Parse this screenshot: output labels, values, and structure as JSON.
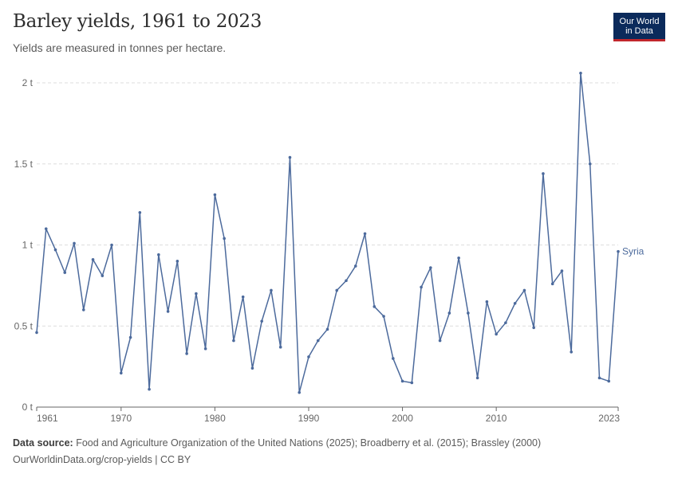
{
  "header": {
    "title": "Barley yields, 1961 to 2023",
    "subtitle": "Yields are measured in tonnes per hectare.",
    "logo_line1": "Our World",
    "logo_line2": "in Data"
  },
  "footer": {
    "source_label": "Data source:",
    "source_text": "Food and Agriculture Organization of the United Nations (2025); Broadberry et al. (2015); Brassley (2000)",
    "url_text": "OurWorldinData.org/crop-yields | CC BY"
  },
  "colors": {
    "series": "#4c6a9c",
    "grid": "#dddddd",
    "axis": "#666666",
    "tick_text": "#666666",
    "logo_bg": "#0b2a5b",
    "logo_accent": "#c1272d"
  },
  "chart_data": {
    "type": "line",
    "title": "Barley yields, 1961 to 2023",
    "subtitle": "Yields are measured in tonnes per hectare.",
    "xlabel": "",
    "ylabel": "",
    "xlim": [
      1961,
      2023
    ],
    "ylim": [
      0,
      2
    ],
    "y_ticks": [
      0,
      0.5,
      1,
      1.5,
      2
    ],
    "y_tick_labels": [
      "0 t",
      "0.5 t",
      "1 t",
      "1.5 t",
      "2 t"
    ],
    "x_ticks": [
      1961,
      1970,
      1980,
      1990,
      2000,
      2010,
      2023
    ],
    "x_tick_labels": [
      "1961",
      "1970",
      "1980",
      "1990",
      "2000",
      "2010",
      "2023"
    ],
    "grid": "horizontal dashed",
    "legend": "inline label at line end",
    "series": [
      {
        "name": "Syria",
        "x": [
          1961,
          1962,
          1963,
          1964,
          1965,
          1966,
          1967,
          1968,
          1969,
          1970,
          1971,
          1972,
          1973,
          1974,
          1975,
          1976,
          1977,
          1978,
          1979,
          1980,
          1981,
          1982,
          1983,
          1984,
          1985,
          1986,
          1987,
          1988,
          1989,
          1990,
          1991,
          1992,
          1993,
          1994,
          1995,
          1996,
          1997,
          1998,
          1999,
          2000,
          2001,
          2002,
          2003,
          2004,
          2005,
          2006,
          2007,
          2008,
          2009,
          2010,
          2011,
          2012,
          2013,
          2014,
          2015,
          2016,
          2017,
          2018,
          2019,
          2020,
          2021,
          2022,
          2023
        ],
        "values": [
          0.46,
          1.1,
          0.97,
          0.83,
          1.01,
          0.6,
          0.91,
          0.81,
          1.0,
          0.21,
          0.43,
          1.2,
          0.11,
          0.94,
          0.59,
          0.9,
          0.33,
          0.7,
          0.36,
          1.31,
          1.04,
          0.41,
          0.68,
          0.24,
          0.53,
          0.72,
          0.37,
          1.54,
          0.09,
          0.31,
          0.41,
          0.48,
          0.72,
          0.78,
          0.87,
          1.07,
          0.62,
          0.56,
          0.3,
          0.16,
          0.15,
          0.74,
          0.86,
          0.41,
          0.58,
          0.92,
          0.58,
          0.18,
          0.65,
          0.45,
          0.52,
          0.64,
          0.72,
          0.49,
          1.44,
          0.76,
          0.84,
          0.34,
          2.06,
          1.5,
          0.18,
          0.16,
          0.96
        ]
      }
    ]
  }
}
